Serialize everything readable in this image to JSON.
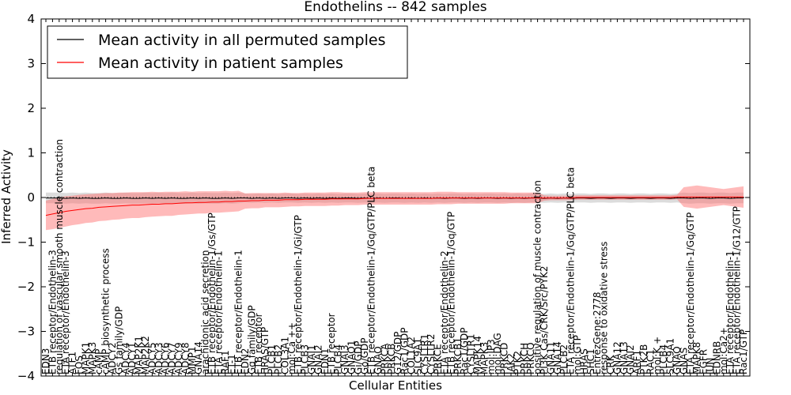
{
  "chart_data": {
    "type": "line",
    "title": "Endothelins -- 842 samples",
    "xlabel": "Cellular Entities",
    "ylabel": "Inferred Activity",
    "ylim": [
      -4,
      4
    ],
    "yticks": [
      -4,
      -3,
      -2,
      -1,
      0,
      1,
      2,
      3,
      4
    ],
    "grid": false,
    "legend_position": "top-left",
    "categories": [
      "EDN3",
      "ETB receptor/Endothelin-3",
      "regulation of vascular smooth muscle contraction",
      "ETA receptor/Endothelin-3",
      "ATF1",
      "FOS",
      "MAPK1",
      "MAPK3",
      "cAMP",
      "cAMP biosynthetic process",
      "ADCY2",
      "Gs family/GDP",
      "ADCY4",
      "ADCY1",
      "MAP2K1",
      "MAP2K2",
      "ADCY5",
      "ADCY3",
      "ADCY6",
      "ADCY7",
      "ADCY9",
      "ADCY8",
      "MMP1",
      "GNA14",
      "arachidonic acid secretion",
      "ETB receptor/Endothelin-1/Gs/GTP",
      "ETA receptor/Endothelin-1",
      "RAF1",
      "ET-1",
      "ETB receptor/Endothelin-1",
      "EDN2",
      "Gq family/GDP",
      "ETB receptor",
      "HRAS/GTP",
      "PLCB1",
      "PLCB2",
      "COL3A1",
      "mol:Ca ++",
      "ETB receptor/Endothelin-1/Gi/GTP",
      "PLCB3",
      "GNAI1",
      "GNAI2",
      "EDN1",
      "ETB receptor",
      "PLCB4",
      "GNAI3",
      "GNAO1",
      "Gi/GDP",
      "Go/GDP",
      "ETB receptor/Endothelin-1/Gq/GTP/PLC beta",
      "GNAQ",
      "PRKCA",
      "PRKCB",
      "G12/GDP",
      "Rac1/GDP",
      "COL1A2",
      "SLC9A1",
      "CYSLTR1",
      "CYSLTR2",
      "PRKCE",
      "ETA receptor/Endothelin-2",
      "ETB receptor/Endothelin-1/Gq/GTP",
      "PRKCB1",
      "Rac1/GDP",
      "CYSLTR1",
      "MAPK14",
      "MAPK3",
      "mol:IP3",
      "mol:DAG",
      "PRKCD",
      "JAK2",
      "PTK2",
      "PRKCH",
      "PRKCQ",
      "positive regulation of muscle contraction",
      "PI3K Cas/CRK/Src/PYK2",
      "GNA11",
      "GNA14",
      "PLCB2",
      "ETA receptor/Endothelin-1/Gq/GTP/PLC beta",
      "mol:GTP",
      "HRAS",
      "SHC1",
      "EntrezGene:2778",
      "response to oxidative stress",
      "CRK",
      "GNA12",
      "GNA13",
      "GNAI2",
      "ARF1",
      "PTK2B",
      "RAC1",
      "mol:K +",
      "PLCB4",
      "SLC9A1",
      "GNAQ",
      "GNAS",
      "ETA receptor/Endothelin-1/Gq/GTP",
      "MAPK8",
      "EGFR",
      "JUN",
      "EDNRB",
      "mol:Ca2+",
      "ETA receptor/Endothelin-1",
      "ETA receptor/Endothelin-1/G12/GTP",
      "Rac1/GTP"
    ],
    "series": [
      {
        "name": "Mean activity in all permuted samples",
        "color": "#000000",
        "values": [
          -0.01,
          -0.01,
          -0.01,
          -0.02,
          -0.01,
          -0.02,
          -0.01,
          -0.02,
          -0.02,
          -0.01,
          -0.02,
          -0.02,
          -0.01,
          -0.02,
          -0.02,
          -0.01,
          -0.02,
          -0.01,
          -0.02,
          -0.01,
          -0.02,
          -0.02,
          -0.01,
          -0.02,
          -0.01,
          -0.02,
          -0.02,
          -0.01,
          -0.02,
          -0.01,
          -0.01,
          -0.02,
          -0.01,
          -0.02,
          -0.01,
          -0.02,
          -0.01,
          -0.01,
          -0.02,
          -0.01,
          -0.02,
          -0.01,
          -0.02,
          -0.01,
          -0.02,
          -0.01,
          -0.01,
          -0.02,
          -0.01,
          -0.02,
          -0.01,
          -0.02,
          -0.01,
          -0.01,
          -0.02,
          -0.01,
          -0.02,
          -0.01,
          -0.02,
          -0.01,
          -0.02,
          -0.01,
          -0.01,
          -0.02,
          -0.01,
          -0.02,
          -0.01,
          -0.01,
          -0.02,
          -0.01,
          -0.02,
          -0.01,
          -0.02,
          -0.01,
          -0.01,
          -0.02,
          -0.01,
          -0.02,
          -0.01,
          -0.02,
          -0.01,
          -0.01,
          -0.02,
          -0.01,
          -0.01,
          -0.02,
          -0.01,
          -0.01,
          -0.02,
          -0.01,
          -0.01,
          -0.02,
          -0.01,
          -0.01,
          -0.02,
          -0.01,
          -0.01,
          -0.02,
          -0.01,
          -0.01,
          -0.02,
          -0.01,
          -0.01,
          -0.02,
          -0.01,
          -0.01
        ],
        "band": [
          0.12,
          0.12,
          0.12,
          0.12,
          0.12,
          0.12,
          0.12,
          0.12,
          0.12,
          0.12,
          0.12,
          0.12,
          0.12,
          0.12,
          0.12,
          0.12,
          0.12,
          0.12,
          0.12,
          0.12,
          0.12,
          0.12,
          0.12,
          0.12,
          0.12,
          0.12,
          0.12,
          0.12,
          0.12,
          0.12,
          0.1,
          0.1,
          0.1,
          0.1,
          0.1,
          0.1,
          0.1,
          0.1,
          0.1,
          0.1,
          0.1,
          0.1,
          0.1,
          0.1,
          0.1,
          0.1,
          0.1,
          0.1,
          0.1,
          0.1,
          0.1,
          0.1,
          0.1,
          0.1,
          0.1,
          0.1,
          0.1,
          0.1,
          0.1,
          0.1,
          0.1,
          0.1,
          0.1,
          0.1,
          0.1,
          0.1,
          0.1,
          0.1,
          0.1,
          0.1,
          0.1,
          0.1,
          0.1,
          0.1,
          0.1,
          0.1,
          0.1,
          0.1,
          0.1,
          0.1,
          0.1,
          0.1,
          0.1,
          0.1,
          0.1,
          0.1,
          0.1,
          0.1,
          0.1,
          0.1,
          0.1,
          0.1,
          0.1,
          0.1,
          0.1,
          0.1,
          0.12,
          0.12,
          0.12,
          0.12,
          0.12,
          0.12,
          0.12,
          0.12,
          0.12,
          0.12
        ]
      },
      {
        "name": "Mean activity in patient samples",
        "color": "#ff0000",
        "values": [
          -0.4,
          -0.37,
          -0.34,
          -0.31,
          -0.29,
          -0.27,
          -0.25,
          -0.24,
          -0.22,
          -0.21,
          -0.2,
          -0.19,
          -0.18,
          -0.17,
          -0.17,
          -0.16,
          -0.15,
          -0.15,
          -0.14,
          -0.14,
          -0.13,
          -0.12,
          -0.12,
          -0.11,
          -0.11,
          -0.1,
          -0.1,
          -0.09,
          -0.09,
          -0.08,
          -0.08,
          -0.07,
          -0.07,
          -0.06,
          -0.06,
          -0.06,
          -0.05,
          -0.05,
          -0.05,
          -0.04,
          -0.04,
          -0.04,
          -0.04,
          -0.03,
          -0.03,
          -0.03,
          -0.03,
          -0.03,
          -0.02,
          -0.02,
          -0.02,
          -0.02,
          -0.02,
          -0.02,
          -0.02,
          -0.02,
          -0.02,
          -0.02,
          -0.02,
          -0.01,
          -0.01,
          -0.01,
          -0.01,
          -0.01,
          -0.01,
          -0.01,
          -0.01,
          -0.01,
          -0.01,
          -0.01,
          -0.01,
          -0.01,
          -0.01,
          -0.01,
          -0.01,
          -0.01,
          -0.01,
          -0.01,
          -0.01,
          -0.01,
          0.0,
          0.0,
          0.0,
          0.0,
          0.0,
          0.0,
          0.0,
          0.0,
          0.0,
          0.0,
          0.0,
          0.0,
          0.0,
          0.0,
          0.0,
          0.01,
          0.01,
          0.01,
          0.01,
          0.01,
          0.01,
          0.01,
          0.01,
          0.01,
          0.01,
          0.01
        ],
        "band": [
          0.33,
          0.34,
          0.34,
          0.34,
          0.33,
          0.33,
          0.32,
          0.32,
          0.31,
          0.31,
          0.3,
          0.3,
          0.29,
          0.29,
          0.29,
          0.28,
          0.28,
          0.27,
          0.27,
          0.27,
          0.26,
          0.26,
          0.25,
          0.25,
          0.25,
          0.24,
          0.24,
          0.24,
          0.23,
          0.23,
          0.17,
          0.17,
          0.17,
          0.16,
          0.16,
          0.16,
          0.16,
          0.15,
          0.15,
          0.15,
          0.15,
          0.15,
          0.15,
          0.15,
          0.15,
          0.14,
          0.14,
          0.14,
          0.14,
          0.14,
          0.14,
          0.14,
          0.14,
          0.14,
          0.14,
          0.14,
          0.14,
          0.14,
          0.14,
          0.14,
          0.14,
          0.14,
          0.13,
          0.13,
          0.13,
          0.13,
          0.13,
          0.13,
          0.13,
          0.13,
          0.12,
          0.12,
          0.12,
          0.12,
          0.12,
          0.06,
          0.05,
          0.05,
          0.05,
          0.05,
          0.05,
          0.05,
          0.05,
          0.05,
          0.05,
          0.05,
          0.05,
          0.05,
          0.05,
          0.05,
          0.05,
          0.05,
          0.05,
          0.05,
          0.05,
          0.05,
          0.22,
          0.24,
          0.26,
          0.24,
          0.22,
          0.2,
          0.18,
          0.2,
          0.22,
          0.24
        ]
      }
    ]
  }
}
